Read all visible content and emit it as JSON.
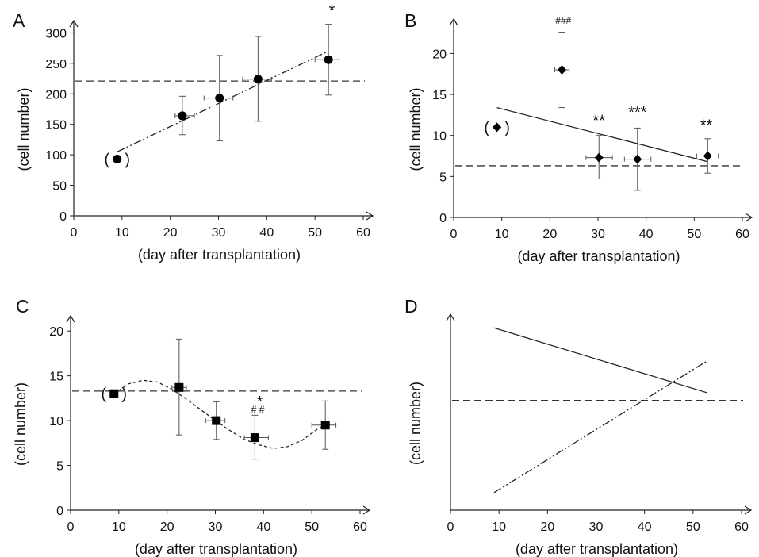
{
  "chart_data": [
    {
      "panel": "A",
      "type": "scatter",
      "xlabel": "(day after transplantation)",
      "ylabel": "(cell number)",
      "xlim": [
        0,
        60
      ],
      "ylim": [
        0,
        300
      ],
      "xticks": [
        0,
        10,
        20,
        30,
        40,
        50,
        60
      ],
      "yticks": [
        0,
        50,
        100,
        150,
        200,
        250,
        300
      ],
      "marker": "circle",
      "points": [
        {
          "x": 9,
          "y": 93,
          "parenthesized": true
        },
        {
          "x": 22.5,
          "y": 164,
          "yerr": [
            133,
            196
          ],
          "xerr": [
            21,
            25
          ]
        },
        {
          "x": 30.2,
          "y": 193,
          "yerr": [
            123,
            263
          ],
          "xerr": [
            27,
            33
          ]
        },
        {
          "x": 38.2,
          "y": 224,
          "yerr": [
            155,
            294
          ],
          "xerr": [
            35,
            41
          ]
        },
        {
          "x": 52.8,
          "y": 256,
          "yerr": [
            198,
            314
          ],
          "xerr": [
            50,
            55
          ]
        }
      ],
      "reference_line": {
        "y": 221,
        "style": "dashed"
      },
      "trend": {
        "style": "dash-dot-dot",
        "kind": "linear",
        "x": [
          9,
          52.8
        ],
        "y": [
          105,
          270
        ]
      },
      "annotations": [
        {
          "x": 53.5,
          "y": 328,
          "text": "*",
          "size": "normal"
        }
      ]
    },
    {
      "panel": "B",
      "type": "scatter",
      "xlabel": "(day after transplantation)",
      "ylabel": "(cell number)",
      "xlim": [
        0,
        60
      ],
      "ylim": [
        0,
        23
      ],
      "xticks": [
        0,
        10,
        20,
        30,
        40,
        50,
        60
      ],
      "yticks": [
        0,
        5,
        10,
        15,
        20
      ],
      "marker": "diamond",
      "points": [
        {
          "x": 9,
          "y": 11,
          "parenthesized": true
        },
        {
          "x": 22.5,
          "y": 18,
          "yerr": [
            13.4,
            22.6
          ],
          "xerr": [
            21,
            24
          ]
        },
        {
          "x": 30.2,
          "y": 7.3,
          "yerr": [
            4.7,
            10
          ],
          "xerr": [
            27.5,
            33
          ]
        },
        {
          "x": 38.2,
          "y": 7.1,
          "yerr": [
            3.3,
            10.9
          ],
          "xerr": [
            35.5,
            41
          ]
        },
        {
          "x": 52.8,
          "y": 7.5,
          "yerr": [
            5.4,
            9.6
          ],
          "xerr": [
            50.5,
            55
          ]
        }
      ],
      "reference_line": {
        "y": 6.3,
        "style": "dashed"
      },
      "trend": {
        "style": "solid",
        "kind": "linear",
        "x": [
          9,
          52.8
        ],
        "y": [
          13.4,
          6.8
        ]
      },
      "annotations": [
        {
          "x": 22.8,
          "y": 23.6,
          "text": "###",
          "size": "small"
        },
        {
          "x": 30.2,
          "y": 11.2,
          "text": "**",
          "size": "normal"
        },
        {
          "x": 38.2,
          "y": 12.2,
          "text": "***",
          "size": "normal"
        },
        {
          "x": 52.5,
          "y": 10.6,
          "text": "**",
          "size": "normal"
        }
      ]
    },
    {
      "panel": "C",
      "type": "scatter",
      "xlabel": "(day after transplantation)",
      "ylabel": "(cell number)",
      "xlim": [
        0,
        60
      ],
      "ylim": [
        0,
        20
      ],
      "xticks": [
        0,
        10,
        20,
        30,
        40,
        50,
        60
      ],
      "yticks": [
        0,
        5,
        10,
        15,
        20
      ],
      "marker": "square",
      "points": [
        {
          "x": 9,
          "y": 13,
          "parenthesized": true
        },
        {
          "x": 22.5,
          "y": 13.7,
          "yerr": [
            8.4,
            19.1
          ],
          "xerr": [
            21,
            24
          ]
        },
        {
          "x": 30.2,
          "y": 10,
          "yerr": [
            7.9,
            12.1
          ],
          "xerr": [
            28,
            32
          ]
        },
        {
          "x": 38.2,
          "y": 8.1,
          "yerr": [
            5.7,
            10.6
          ],
          "xerr": [
            36,
            41
          ]
        },
        {
          "x": 52.8,
          "y": 9.5,
          "yerr": [
            6.8,
            12.2
          ],
          "xerr": [
            50,
            55
          ]
        }
      ],
      "reference_line": {
        "y": 13.3,
        "style": "dashed"
      },
      "trend": {
        "style": "dotted",
        "kind": "curve",
        "x": [
          9,
          12,
          15,
          18,
          21,
          24,
          27,
          30,
          33,
          36,
          39,
          42,
          45,
          48,
          51,
          52.8
        ],
        "y": [
          13.0,
          14.1,
          14.5,
          14.3,
          13.5,
          12.4,
          11.2,
          10.0,
          8.9,
          7.9,
          7.3,
          6.9,
          7.1,
          7.8,
          9.0,
          9.5
        ]
      },
      "annotations": [
        {
          "x": 39.2,
          "y": 11.5,
          "text": "*",
          "size": "normal"
        },
        {
          "x": 38.8,
          "y": 10.9,
          "text": "# #",
          "size": "small"
        }
      ]
    },
    {
      "panel": "D",
      "type": "line",
      "xlabel": "(day after transplantation)",
      "ylabel": "(cell number)",
      "xlim": [
        0,
        60
      ],
      "ylim": [
        0,
        100
      ],
      "xticks": [
        0,
        10,
        20,
        30,
        40,
        50,
        60
      ],
      "yticks": [],
      "points": [],
      "reference_line": {
        "y": 56,
        "style": "dashed"
      },
      "trends": [
        {
          "style": "solid",
          "x": [
            9,
            52.8
          ],
          "y": [
            93,
            60
          ]
        },
        {
          "style": "dash-dot-dot",
          "x": [
            9,
            52.8
          ],
          "y": [
            9,
            76
          ]
        }
      ],
      "annotations": []
    }
  ]
}
